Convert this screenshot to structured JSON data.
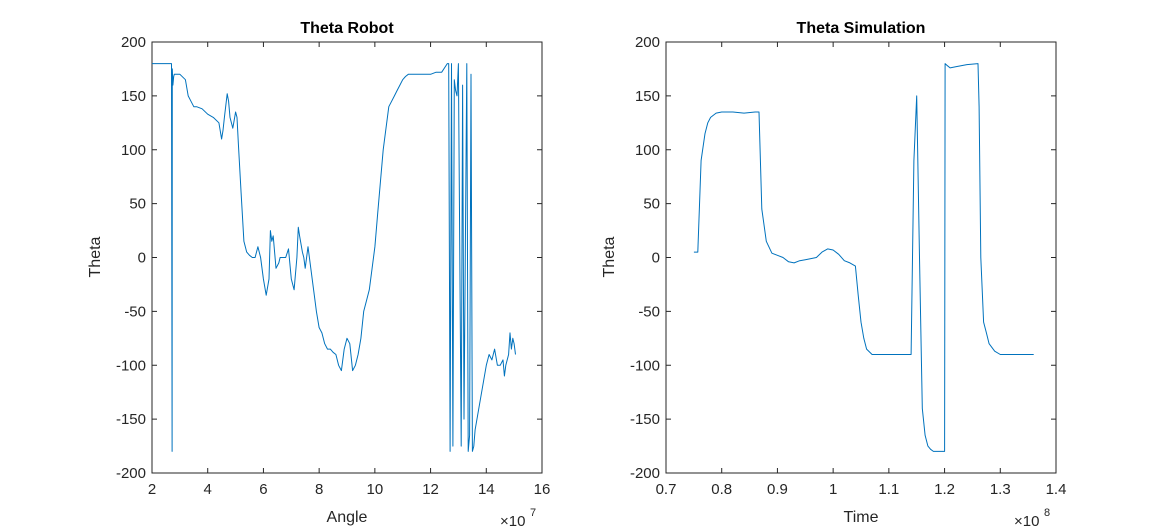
{
  "chart_data": [
    {
      "type": "line",
      "title": "Theta Robot",
      "xlabel": "Angle",
      "ylabel": "Theta",
      "xlim": [
        2,
        16
      ],
      "ylim": [
        -200,
        200
      ],
      "x_ticks": [
        2,
        4,
        6,
        8,
        10,
        12,
        14,
        16
      ],
      "x_tick_labels": [
        "2",
        "4",
        "6",
        "8",
        "10",
        "12",
        "14",
        "16"
      ],
      "y_ticks": [
        -200,
        -150,
        -100,
        -50,
        0,
        50,
        100,
        150,
        200
      ],
      "y_tick_labels": [
        "-200",
        "-150",
        "-100",
        "-50",
        "0",
        "50",
        "100",
        "150",
        "200"
      ],
      "x_exponent": {
        "base": "×10",
        "power": "7"
      },
      "grid": false,
      "series": [
        {
          "color": "#0072BD",
          "x": [
            2.0,
            2.7,
            2.72,
            2.73,
            2.75,
            2.78,
            2.8,
            2.9,
            3.0,
            3.2,
            3.3,
            3.4,
            3.5,
            3.6,
            3.8,
            4.0,
            4.2,
            4.4,
            4.5,
            4.55,
            4.6,
            4.7,
            4.75,
            4.8,
            4.9,
            5.0,
            5.05,
            5.1,
            5.2,
            5.3,
            5.4,
            5.5,
            5.6,
            5.7,
            5.8,
            5.9,
            6.0,
            6.1,
            6.2,
            6.25,
            6.3,
            6.35,
            6.45,
            6.55,
            6.6,
            6.7,
            6.8,
            6.9,
            7.0,
            7.1,
            7.2,
            7.25,
            7.3,
            7.4,
            7.45,
            7.5,
            7.6,
            7.7,
            7.8,
            7.85,
            7.9,
            8.0,
            8.1,
            8.2,
            8.3,
            8.4,
            8.5,
            8.6,
            8.7,
            8.8,
            8.9,
            9.0,
            9.1,
            9.2,
            9.3,
            9.4,
            9.5,
            9.6,
            9.7,
            9.8,
            9.9,
            10.0,
            10.1,
            10.2,
            10.3,
            10.4,
            10.5,
            10.6,
            10.7,
            10.8,
            10.9,
            11.0,
            11.1,
            11.2,
            11.4,
            11.6,
            11.8,
            12.0,
            12.2,
            12.4,
            12.6,
            12.65,
            12.7,
            12.75,
            12.8,
            12.85,
            12.9,
            12.95,
            13.0,
            13.1,
            13.15,
            13.2,
            13.3,
            13.35,
            13.4,
            13.45,
            13.5,
            13.55,
            13.6,
            13.7,
            13.8,
            13.9,
            14.0,
            14.1,
            14.2,
            14.3,
            14.4,
            14.5,
            14.6,
            14.65,
            14.7,
            14.8,
            14.85,
            14.9,
            14.95,
            15.0,
            15.05
          ],
          "y": [
            180,
            180,
            -180,
            175,
            160,
            168,
            170,
            170,
            170,
            165,
            150,
            145,
            140,
            140,
            138,
            133,
            130,
            125,
            110,
            118,
            130,
            152,
            145,
            130,
            120,
            135,
            130,
            105,
            60,
            15,
            5,
            2,
            0,
            0,
            10,
            0,
            -20,
            -35,
            -20,
            25,
            15,
            20,
            -10,
            -5,
            0,
            0,
            0,
            8,
            -20,
            -30,
            0,
            28,
            20,
            5,
            0,
            -10,
            10,
            -10,
            -30,
            -40,
            -50,
            -65,
            -70,
            -80,
            -85,
            -85,
            -88,
            -90,
            -100,
            -105,
            -85,
            -75,
            -80,
            -105,
            -100,
            -90,
            -75,
            -50,
            -40,
            -30,
            -10,
            10,
            40,
            70,
            100,
            120,
            140,
            145,
            150,
            155,
            160,
            165,
            168,
            170,
            170,
            170,
            170,
            170,
            172,
            172,
            180,
            180,
            -180,
            180,
            -175,
            165,
            155,
            150,
            180,
            -175,
            160,
            -150,
            180,
            -180,
            -165,
            170,
            -180,
            -175,
            -160,
            -145,
            -130,
            -115,
            -100,
            -90,
            -95,
            -85,
            -100,
            -100,
            -95,
            -110,
            -100,
            -90,
            -70,
            -85,
            -75,
            -80,
            -90
          ]
        }
      ]
    },
    {
      "type": "line",
      "title": "Theta Simulation",
      "xlabel": "Time",
      "ylabel": "Theta",
      "xlim": [
        0.7,
        1.4
      ],
      "ylim": [
        -200,
        200
      ],
      "x_ticks": [
        0.7,
        0.8,
        0.9,
        1.0,
        1.1,
        1.2,
        1.3,
        1.4
      ],
      "x_tick_labels": [
        "0.7",
        "0.8",
        "0.9",
        "1",
        "1.1",
        "1.2",
        "1.3",
        "1.4"
      ],
      "y_ticks": [
        -200,
        -150,
        -100,
        -50,
        0,
        50,
        100,
        150,
        200
      ],
      "y_tick_labels": [
        "-200",
        "-150",
        "-100",
        "-50",
        "0",
        "50",
        "100",
        "150",
        "200"
      ],
      "x_exponent": {
        "base": "×10",
        "power": "8"
      },
      "grid": false,
      "series": [
        {
          "color": "#0072BD",
          "x": [
            0.75,
            0.757,
            0.763,
            0.77,
            0.775,
            0.78,
            0.79,
            0.8,
            0.82,
            0.84,
            0.86,
            0.863,
            0.867,
            0.872,
            0.88,
            0.89,
            0.9,
            0.91,
            0.92,
            0.93,
            0.94,
            0.95,
            0.96,
            0.97,
            0.98,
            0.99,
            1.0,
            1.01,
            1.02,
            1.03,
            1.04,
            1.045,
            1.05,
            1.055,
            1.06,
            1.07,
            1.08,
            1.1,
            1.12,
            1.14,
            1.145,
            1.15,
            1.155,
            1.16,
            1.165,
            1.17,
            1.175,
            1.18,
            1.19,
            1.2,
            1.201,
            1.205,
            1.21,
            1.22,
            1.24,
            1.26,
            1.262,
            1.265,
            1.27,
            1.275,
            1.28,
            1.29,
            1.3,
            1.32,
            1.34,
            1.36
          ],
          "y": [
            5,
            5,
            90,
            115,
            125,
            130,
            134,
            135,
            135,
            134,
            135,
            135,
            135,
            45,
            15,
            4,
            2,
            0,
            -4,
            -5,
            -3,
            -2,
            -1,
            0,
            5,
            8,
            7,
            3,
            -3,
            -5,
            -8,
            -35,
            -60,
            -75,
            -85,
            -90,
            -90,
            -90,
            -90,
            -90,
            90,
            150,
            0,
            -140,
            -165,
            -175,
            -178,
            -180,
            -180,
            -180,
            180,
            178,
            176,
            177,
            179,
            180,
            140,
            0,
            -60,
            -70,
            -80,
            -87,
            -90,
            -90,
            -90,
            -90
          ]
        }
      ]
    }
  ]
}
